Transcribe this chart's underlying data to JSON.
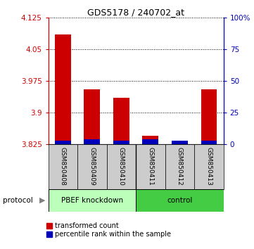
{
  "title": "GDS5178 / 240702_at",
  "samples": [
    "GSM850408",
    "GSM850409",
    "GSM850410",
    "GSM850411",
    "GSM850412",
    "GSM850413"
  ],
  "transformed_counts": [
    4.085,
    3.955,
    3.935,
    3.845,
    3.831,
    3.955
  ],
  "percentile_ranks": [
    3,
    4,
    3,
    4,
    3,
    3
  ],
  "ylim_left": [
    3.825,
    4.125
  ],
  "ylim_right": [
    0,
    100
  ],
  "yticks_left": [
    3.825,
    3.9,
    3.975,
    4.05,
    4.125
  ],
  "ytick_labels_left": [
    "3.825",
    "3.9",
    "3.975",
    "4.05",
    "4.125"
  ],
  "yticks_right": [
    0,
    25,
    50,
    75,
    100
  ],
  "ytick_labels_right": [
    "0",
    "25",
    "50",
    "75",
    "100%"
  ],
  "bar_base": 3.825,
  "red_color": "#cc0000",
  "blue_color": "#0000bb",
  "group1_color": "#bbffbb",
  "group2_color": "#44cc44",
  "label_area_color": "#cccccc",
  "left_tick_color": "#cc0000",
  "right_tick_color": "#0000bb",
  "group_names": [
    "PBEF knockdown",
    "control"
  ],
  "legend_labels": [
    "transformed count",
    "percentile rank within the sample"
  ]
}
